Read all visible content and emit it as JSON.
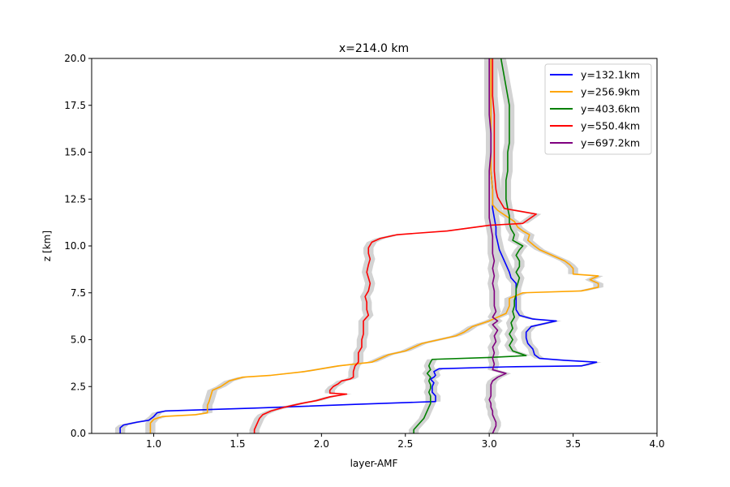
{
  "chart_data": {
    "type": "line",
    "title": "x=214.0 km",
    "xlabel": "layer-AMF",
    "ylabel": "z [km]",
    "xlim": [
      0.63,
      4.0
    ],
    "ylim": [
      0,
      20
    ],
    "xticks": [
      1.0,
      1.5,
      2.0,
      2.5,
      3.0,
      3.5,
      4.0
    ],
    "xtick_labels": [
      "1.0",
      "1.5",
      "2.0",
      "2.5",
      "3.0",
      "3.5",
      "4.0"
    ],
    "yticks": [
      0,
      2.5,
      5,
      7.5,
      10,
      12.5,
      15,
      17.5,
      20
    ],
    "ytick_labels": [
      "0.0",
      "2.5",
      "5.0",
      "7.5",
      "10.0",
      "12.5",
      "15.0",
      "17.5",
      "20.0"
    ],
    "grid": false,
    "legend_position": "top-right",
    "band_color": "#d3d3d3",
    "series": [
      {
        "name": "y=132.1km",
        "color": "#0000ff",
        "points": [
          [
            0.8,
            0.0
          ],
          [
            0.8,
            0.3
          ],
          [
            0.82,
            0.45
          ],
          [
            0.9,
            0.6
          ],
          [
            0.97,
            0.7
          ],
          [
            1.0,
            0.9
          ],
          [
            1.02,
            1.1
          ],
          [
            1.07,
            1.2
          ],
          [
            1.6,
            1.35
          ],
          [
            2.2,
            1.55
          ],
          [
            2.68,
            1.7
          ],
          [
            2.68,
            2.0
          ],
          [
            2.66,
            2.2
          ],
          [
            2.66,
            2.5
          ],
          [
            2.67,
            2.7
          ],
          [
            2.65,
            2.9
          ],
          [
            2.67,
            3.0
          ],
          [
            2.68,
            3.1
          ],
          [
            2.67,
            3.3
          ],
          [
            2.7,
            3.45
          ],
          [
            3.1,
            3.55
          ],
          [
            3.55,
            3.6
          ],
          [
            3.64,
            3.8
          ],
          [
            3.45,
            3.9
          ],
          [
            3.3,
            4.0
          ],
          [
            3.27,
            4.2
          ],
          [
            3.26,
            4.5
          ],
          [
            3.23,
            4.8
          ],
          [
            3.22,
            5.1
          ],
          [
            3.22,
            5.4
          ],
          [
            3.25,
            5.7
          ],
          [
            3.4,
            6.0
          ],
          [
            3.26,
            6.1
          ],
          [
            3.18,
            6.3
          ],
          [
            3.16,
            6.6
          ],
          [
            3.16,
            7.0
          ],
          [
            3.16,
            7.5
          ],
          [
            3.16,
            8.0
          ],
          [
            3.13,
            8.3
          ],
          [
            3.12,
            8.6
          ],
          [
            3.1,
            9.0
          ],
          [
            3.08,
            9.4
          ],
          [
            3.06,
            9.8
          ],
          [
            3.05,
            10.2
          ],
          [
            3.04,
            10.6
          ],
          [
            3.04,
            11.0
          ],
          [
            3.03,
            11.5
          ],
          [
            3.02,
            12.0
          ],
          [
            3.02,
            12.5
          ],
          [
            3.02,
            13.0
          ],
          [
            3.01,
            14.0
          ],
          [
            3.01,
            15.0
          ],
          [
            3.01,
            16.0
          ],
          [
            3.01,
            17.0
          ],
          [
            3.01,
            18.0
          ],
          [
            3.01,
            19.0
          ],
          [
            3.01,
            20.0
          ]
        ]
      },
      {
        "name": "y=256.9km",
        "color": "#ffa500",
        "points": [
          [
            0.98,
            0.0
          ],
          [
            0.98,
            0.3
          ],
          [
            0.98,
            0.55
          ],
          [
            1.0,
            0.75
          ],
          [
            1.05,
            0.9
          ],
          [
            1.25,
            1.0
          ],
          [
            1.32,
            1.1
          ],
          [
            1.32,
            1.3
          ],
          [
            1.32,
            1.5
          ],
          [
            1.33,
            1.7
          ],
          [
            1.34,
            2.0
          ],
          [
            1.35,
            2.3
          ],
          [
            1.4,
            2.5
          ],
          [
            1.45,
            2.8
          ],
          [
            1.53,
            3.0
          ],
          [
            1.7,
            3.1
          ],
          [
            1.9,
            3.3
          ],
          [
            2.1,
            3.6
          ],
          [
            2.3,
            3.8
          ],
          [
            2.35,
            4.0
          ],
          [
            2.4,
            4.2
          ],
          [
            2.5,
            4.4
          ],
          [
            2.55,
            4.6
          ],
          [
            2.6,
            4.8
          ],
          [
            2.7,
            5.0
          ],
          [
            2.8,
            5.2
          ],
          [
            2.85,
            5.4
          ],
          [
            2.9,
            5.7
          ],
          [
            3.0,
            6.0
          ],
          [
            3.05,
            6.2
          ],
          [
            3.1,
            6.4
          ],
          [
            3.12,
            6.8
          ],
          [
            3.12,
            7.2
          ],
          [
            3.2,
            7.5
          ],
          [
            3.55,
            7.6
          ],
          [
            3.65,
            7.8
          ],
          [
            3.65,
            8.0
          ],
          [
            3.6,
            8.2
          ],
          [
            3.65,
            8.4
          ],
          [
            3.5,
            8.5
          ],
          [
            3.5,
            8.8
          ],
          [
            3.48,
            9.0
          ],
          [
            3.45,
            9.2
          ],
          [
            3.4,
            9.4
          ],
          [
            3.35,
            9.6
          ],
          [
            3.3,
            9.8
          ],
          [
            3.27,
            10.0
          ],
          [
            3.23,
            10.3
          ],
          [
            3.24,
            10.6
          ],
          [
            3.2,
            10.8
          ],
          [
            3.17,
            11.0
          ],
          [
            3.15,
            11.3
          ],
          [
            3.1,
            11.6
          ],
          [
            3.05,
            11.9
          ],
          [
            3.02,
            12.2
          ],
          [
            3.02,
            12.6
          ],
          [
            3.02,
            13.0
          ],
          [
            3.01,
            14.0
          ],
          [
            3.01,
            15.0
          ],
          [
            3.01,
            16.0
          ],
          [
            3.01,
            17.0
          ],
          [
            3.01,
            18.0
          ],
          [
            3.01,
            19.0
          ],
          [
            3.01,
            20.0
          ]
        ]
      },
      {
        "name": "y=403.6km",
        "color": "#008000",
        "points": [
          [
            2.55,
            0.0
          ],
          [
            2.55,
            0.2
          ],
          [
            2.57,
            0.4
          ],
          [
            2.59,
            0.6
          ],
          [
            2.61,
            0.8
          ],
          [
            2.62,
            1.0
          ],
          [
            2.63,
            1.2
          ],
          [
            2.64,
            1.4
          ],
          [
            2.65,
            1.6
          ],
          [
            2.65,
            1.8
          ],
          [
            2.65,
            2.0
          ],
          [
            2.64,
            2.2
          ],
          [
            2.65,
            2.4
          ],
          [
            2.65,
            2.6
          ],
          [
            2.64,
            2.8
          ],
          [
            2.65,
            3.0
          ],
          [
            2.63,
            3.2
          ],
          [
            2.65,
            3.4
          ],
          [
            2.64,
            3.6
          ],
          [
            2.65,
            3.8
          ],
          [
            2.66,
            3.95
          ],
          [
            3.0,
            4.05
          ],
          [
            3.22,
            4.15
          ],
          [
            3.14,
            4.4
          ],
          [
            3.12,
            4.7
          ],
          [
            3.14,
            5.0
          ],
          [
            3.12,
            5.3
          ],
          [
            3.14,
            5.6
          ],
          [
            3.13,
            5.9
          ],
          [
            3.15,
            6.2
          ],
          [
            3.14,
            6.5
          ],
          [
            3.15,
            6.8
          ],
          [
            3.15,
            7.1
          ],
          [
            3.16,
            7.4
          ],
          [
            3.16,
            7.7
          ],
          [
            3.17,
            8.0
          ],
          [
            3.18,
            8.3
          ],
          [
            3.16,
            8.6
          ],
          [
            3.18,
            8.9
          ],
          [
            3.18,
            9.2
          ],
          [
            3.16,
            9.5
          ],
          [
            3.18,
            9.8
          ],
          [
            3.2,
            10.0
          ],
          [
            3.14,
            10.3
          ],
          [
            3.15,
            10.6
          ],
          [
            3.13,
            10.9
          ],
          [
            3.12,
            11.2
          ],
          [
            3.12,
            11.6
          ],
          [
            3.11,
            12.0
          ],
          [
            3.1,
            12.5
          ],
          [
            3.1,
            13.0
          ],
          [
            3.1,
            13.5
          ],
          [
            3.11,
            14.0
          ],
          [
            3.11,
            14.5
          ],
          [
            3.11,
            15.0
          ],
          [
            3.12,
            15.5
          ],
          [
            3.12,
            16.0
          ],
          [
            3.12,
            16.5
          ],
          [
            3.12,
            17.0
          ],
          [
            3.12,
            17.5
          ],
          [
            3.11,
            18.0
          ],
          [
            3.1,
            18.5
          ],
          [
            3.09,
            19.0
          ],
          [
            3.08,
            19.5
          ],
          [
            3.07,
            20.0
          ]
        ]
      },
      {
        "name": "y=550.4km",
        "color": "#ff0000",
        "points": [
          [
            1.6,
            0.0
          ],
          [
            1.6,
            0.2
          ],
          [
            1.61,
            0.4
          ],
          [
            1.62,
            0.6
          ],
          [
            1.63,
            0.8
          ],
          [
            1.65,
            1.0
          ],
          [
            1.7,
            1.2
          ],
          [
            1.78,
            1.4
          ],
          [
            1.88,
            1.6
          ],
          [
            1.97,
            1.75
          ],
          [
            2.05,
            1.95
          ],
          [
            2.15,
            2.1
          ],
          [
            2.05,
            2.15
          ],
          [
            2.05,
            2.3
          ],
          [
            2.07,
            2.5
          ],
          [
            2.1,
            2.65
          ],
          [
            2.12,
            2.8
          ],
          [
            2.17,
            2.9
          ],
          [
            2.19,
            3.0
          ],
          [
            2.19,
            3.3
          ],
          [
            2.2,
            3.6
          ],
          [
            2.22,
            3.8
          ],
          [
            2.22,
            4.0
          ],
          [
            2.22,
            4.3
          ],
          [
            2.24,
            4.6
          ],
          [
            2.24,
            5.0
          ],
          [
            2.25,
            5.3
          ],
          [
            2.25,
            5.7
          ],
          [
            2.25,
            6.0
          ],
          [
            2.28,
            6.3
          ],
          [
            2.27,
            6.6
          ],
          [
            2.27,
            7.0
          ],
          [
            2.26,
            7.3
          ],
          [
            2.28,
            7.6
          ],
          [
            2.29,
            8.0
          ],
          [
            2.28,
            8.3
          ],
          [
            2.27,
            8.6
          ],
          [
            2.28,
            9.0
          ],
          [
            2.29,
            9.3
          ],
          [
            2.28,
            9.6
          ],
          [
            2.28,
            9.9
          ],
          [
            2.3,
            10.2
          ],
          [
            2.35,
            10.4
          ],
          [
            2.45,
            10.6
          ],
          [
            2.75,
            10.8
          ],
          [
            3.0,
            11.1
          ],
          [
            3.2,
            11.2
          ],
          [
            3.28,
            11.7
          ],
          [
            3.15,
            11.9
          ],
          [
            3.09,
            12.0
          ],
          [
            3.07,
            12.3
          ],
          [
            3.05,
            12.6
          ],
          [
            3.04,
            13.0
          ],
          [
            3.03,
            14.0
          ],
          [
            3.03,
            15.0
          ],
          [
            3.03,
            16.0
          ],
          [
            3.03,
            17.0
          ],
          [
            3.02,
            18.0
          ],
          [
            3.02,
            19.0
          ],
          [
            3.02,
            20.0
          ]
        ]
      },
      {
        "name": "y=697.2km",
        "color": "#800080",
        "points": [
          [
            3.02,
            0.0
          ],
          [
            3.03,
            0.2
          ],
          [
            3.04,
            0.4
          ],
          [
            3.04,
            0.6
          ],
          [
            3.03,
            0.8
          ],
          [
            3.02,
            1.0
          ],
          [
            3.02,
            1.2
          ],
          [
            3.01,
            1.4
          ],
          [
            3.01,
            1.6
          ],
          [
            3.0,
            1.8
          ],
          [
            3.01,
            2.0
          ],
          [
            3.01,
            2.3
          ],
          [
            3.01,
            2.6
          ],
          [
            3.02,
            2.8
          ],
          [
            3.05,
            3.0
          ],
          [
            3.1,
            3.2
          ],
          [
            3.02,
            3.4
          ],
          [
            3.03,
            3.7
          ],
          [
            3.02,
            4.0
          ],
          [
            3.03,
            4.3
          ],
          [
            3.02,
            4.6
          ],
          [
            3.04,
            4.9
          ],
          [
            3.03,
            5.2
          ],
          [
            3.05,
            5.5
          ],
          [
            3.02,
            5.8
          ],
          [
            3.05,
            6.0
          ],
          [
            3.02,
            6.2
          ],
          [
            3.04,
            6.5
          ],
          [
            3.03,
            6.8
          ],
          [
            3.03,
            7.2
          ],
          [
            3.03,
            7.6
          ],
          [
            3.02,
            8.0
          ],
          [
            3.03,
            8.4
          ],
          [
            3.02,
            8.8
          ],
          [
            3.03,
            9.2
          ],
          [
            3.02,
            9.6
          ],
          [
            3.02,
            10.0
          ],
          [
            3.02,
            10.5
          ],
          [
            3.01,
            11.0
          ],
          [
            3.0,
            11.5
          ],
          [
            3.0,
            12.0
          ],
          [
            3.0,
            12.5
          ],
          [
            3.0,
            13.0
          ],
          [
            3.0,
            13.5
          ],
          [
            3.0,
            14.0
          ],
          [
            3.01,
            15.0
          ],
          [
            3.01,
            16.0
          ],
          [
            3.0,
            17.0
          ],
          [
            3.0,
            18.0
          ],
          [
            3.0,
            19.0
          ],
          [
            3.0,
            20.0
          ]
        ]
      }
    ]
  }
}
